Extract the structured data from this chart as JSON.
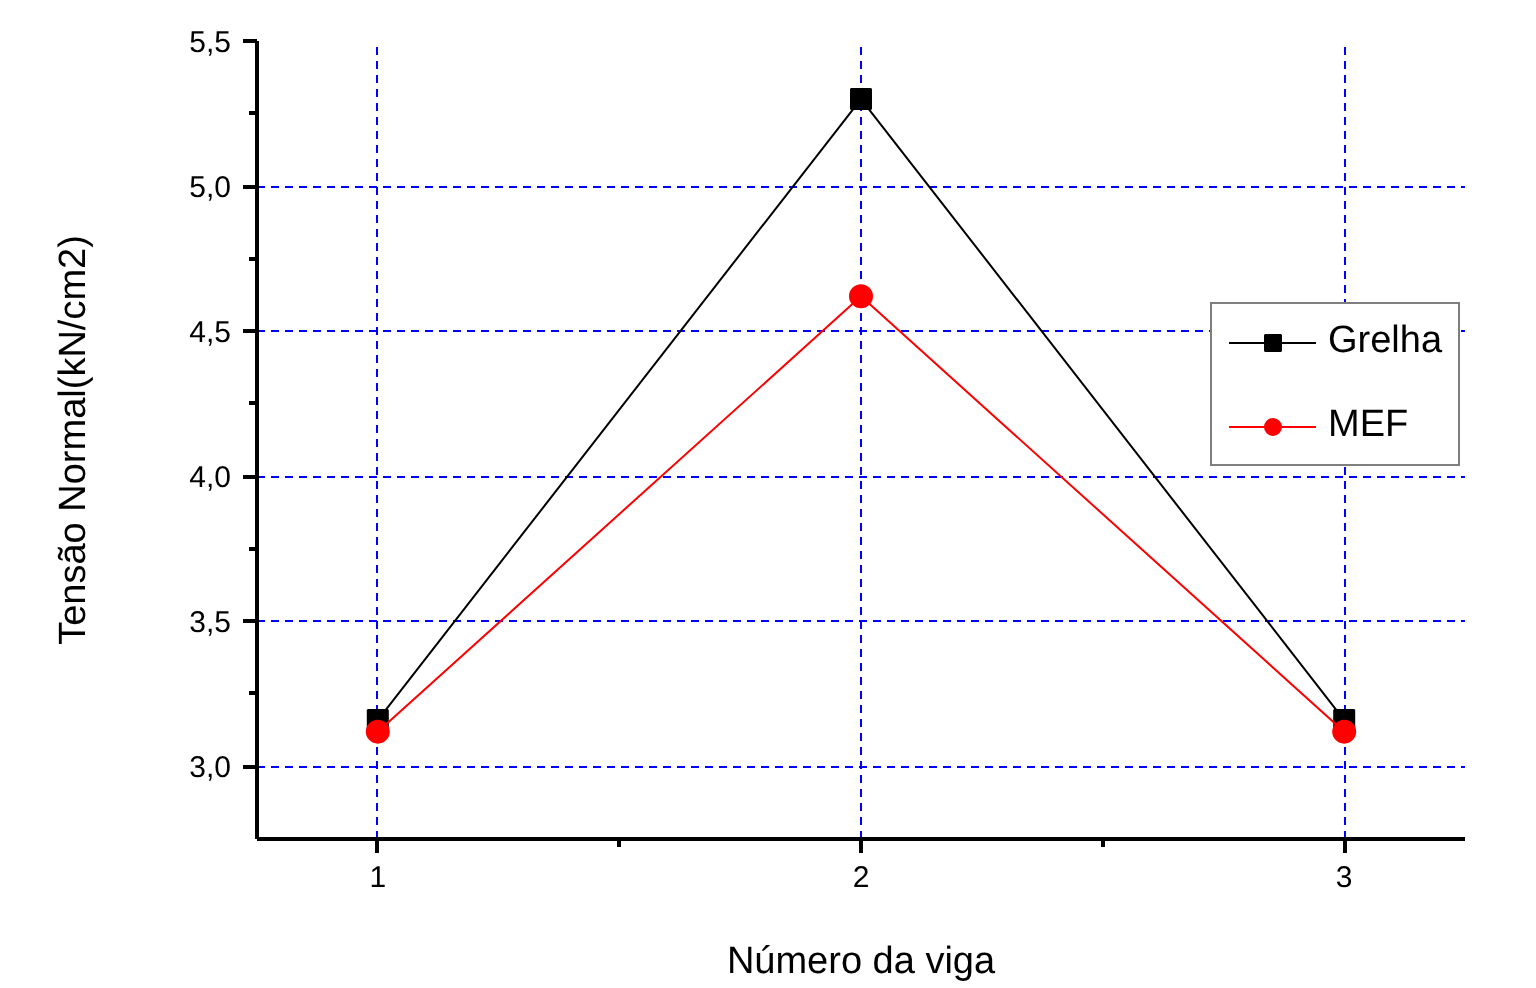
{
  "chart_data": {
    "type": "line",
    "xlabel": "Número da viga",
    "ylabel": "Tensão Normal(kN/cm2)",
    "x": [
      1,
      2,
      3
    ],
    "xlim": [
      0.75,
      3.25
    ],
    "xticks": [
      1,
      {
        "value": 1.5,
        "label": null
      },
      2,
      {
        "value": 2.5,
        "label": null
      },
      3
    ],
    "ylim": [
      2.75,
      5.5
    ],
    "yticks": [
      {
        "value": 3.0,
        "label": "3,0"
      },
      {
        "value": 3.25,
        "label": null
      },
      {
        "value": 3.5,
        "label": "3,5"
      },
      {
        "value": 3.75,
        "label": null
      },
      {
        "value": 4.0,
        "label": "4,0"
      },
      {
        "value": 4.25,
        "label": null
      },
      {
        "value": 4.5,
        "label": "4,5"
      },
      {
        "value": 4.75,
        "label": null
      },
      {
        "value": 5.0,
        "label": "5,0"
      },
      {
        "value": 5.25,
        "label": null
      },
      {
        "value": 5.5,
        "label": "5,5"
      }
    ],
    "grid": true,
    "legend": "right",
    "line_style": "solid",
    "series": [
      {
        "name": "Grelha",
        "color": "#000000",
        "marker": "square",
        "values": [
          3.16,
          5.3,
          3.16
        ]
      },
      {
        "name": "MEF",
        "color": "#ff0000",
        "marker": "circle",
        "values": [
          3.12,
          4.62,
          3.12
        ]
      }
    ]
  }
}
